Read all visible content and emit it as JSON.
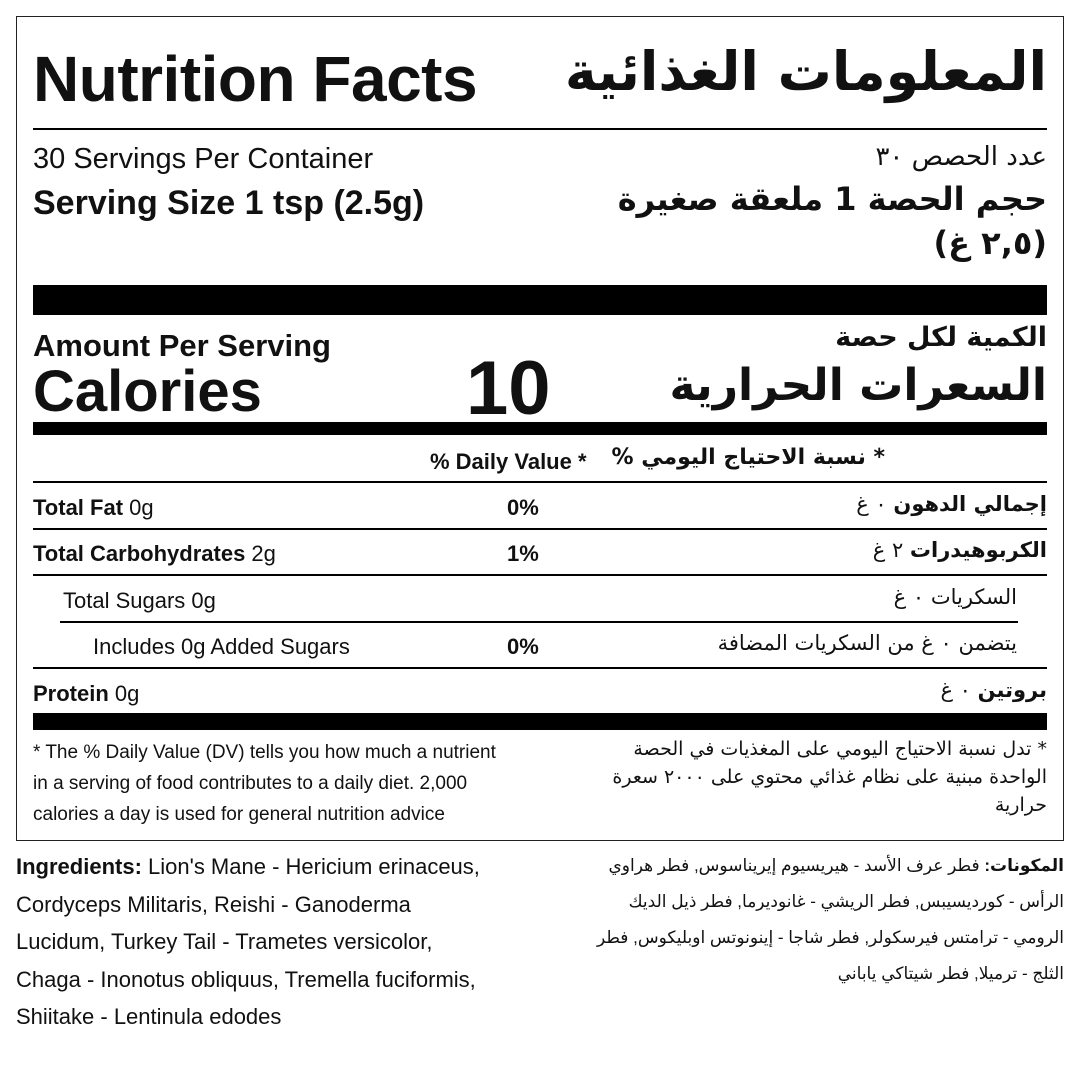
{
  "title": {
    "en": "Nutrition Facts",
    "ar": "المعلومات الغذائية"
  },
  "servings": {
    "per_container_en": "30 Servings Per Container",
    "per_container_ar": "عدد الحصص ٣٠",
    "size_en": "Serving Size 1 tsp (2.5g)",
    "size_ar_line1": "حجم الحصة 1 ملعقة صغيرة",
    "size_ar_line2": "(٢,٥ غ)"
  },
  "calories": {
    "amount_en": "Amount Per Serving",
    "amount_ar": "الكمية لكل حصة",
    "label_en": "Calories",
    "label_ar": "السعرات الحرارية",
    "value": "10"
  },
  "dv_header": {
    "en": "% Daily Value *",
    "ar": "* نسبة الاحتياج اليومي %"
  },
  "nutrients": [
    {
      "name_en": "Total Fat",
      "amount_en": " 0g",
      "dv": "0%",
      "name_ar": "إجمالي الدهون",
      "amount_ar": " ٠ غ"
    },
    {
      "name_en": "Total Carbohydrates",
      "amount_en": " 2g",
      "dv": "1%",
      "name_ar": "الكربوهيدرات",
      "amount_ar": " ٢ غ"
    },
    {
      "name_en": "Total Sugars 0g",
      "dv": "",
      "name_ar": "السكريات ٠ غ"
    },
    {
      "name_en": "Includes 0g Added Sugars",
      "dv": "0%",
      "name_ar": "يتضمن ٠ غ من السكريات المضافة"
    },
    {
      "name_en": "Protein",
      "amount_en": " 0g",
      "dv": "",
      "name_ar": "بروتين",
      "amount_ar": " ٠ غ"
    }
  ],
  "footnote": {
    "en": [
      "* The % Daily Value (DV) tells you how much a nutrient",
      "in a serving of food contributes to a daily diet. 2,000",
      "calories a day is used for general nutrition advice"
    ],
    "ar": [
      "* تدل نسبة الاحتياج اليومي على المغذيات في الحصة",
      "الواحدة مبنية على نظام غذائي محتوي على ٢٠٠٠ سعرة",
      "حرارية"
    ]
  },
  "ingredients": {
    "label_en": "Ingredients:",
    "en": [
      " Lion's Mane - Hericium erinaceus,",
      "Cordyceps Militaris, Reishi - Ganoderma",
      "Lucidum, Turkey Tail - Trametes versicolor,",
      "Chaga - Inonotus obliquus, Tremella fuciformis,",
      "Shiitake - Lentinula edodes"
    ],
    "label_ar": "المكونات:",
    "ar": [
      " فطر عرف الأسد - هيريسيوم إيريناسوس, فطر هراوي",
      "الرأس - كورديسيبس, فطر الريشي - غانوديرما, فطر ذيل الديك",
      "الرومي - ترامتس فيرسكولر, فطر شاجا - إينونوتس اوبليكوس, فطر",
      "الثلج - ترميلا, فطر شيتاكي ياباني"
    ]
  }
}
